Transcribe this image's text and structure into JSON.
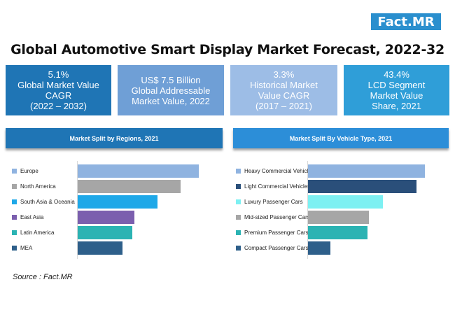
{
  "logo": "Fact.MR",
  "title": "Global Automotive Smart Display Market Forecast, 2022-32",
  "kpis": [
    {
      "lines": [
        "5.1%",
        "Global Market Value",
        "CAGR",
        "(2022 – 2032)"
      ],
      "color": "#1f75b5"
    },
    {
      "lines": [
        "US$ 7.5 Billion",
        "Global Addressable",
        "Market Value, 2022"
      ],
      "color": "#6f9fd6"
    },
    {
      "lines": [
        "3.3%",
        "Historical Market",
        "Value CAGR",
        "(2017 – 2021)"
      ],
      "color": "#9dbde6"
    },
    {
      "lines": [
        "43.4%",
        "LCD Segment",
        "Market Value",
        "Share, 2021"
      ],
      "color": "#2f9ed8"
    }
  ],
  "chart_data": [
    {
      "type": "bar",
      "orientation": "horizontal",
      "title": "Market Split by Regions, 2021",
      "categories": [
        "Europe",
        "North America",
        "South Asia & Oceania",
        "East Asia",
        "Latin America",
        "MEA"
      ],
      "values": [
        100,
        85,
        66,
        47,
        45,
        37
      ],
      "colors": [
        "#8fb3e0",
        "#a6a6a6",
        "#1ea8e8",
        "#7b5fae",
        "#2bb3b3",
        "#2e5f8a"
      ],
      "xlim": [
        0,
        100
      ],
      "header_color": "#1f75b5"
    },
    {
      "type": "bar",
      "orientation": "horizontal",
      "title": "Market Split By Vehicle Type, 2021",
      "categories": [
        "Heavy Commercial Vehicles",
        "Light Commercial Vehicles",
        "Luxury Passenger Cars",
        "Mid-sized Passenger Cars",
        "Premium Passenger Cars",
        "Compact Passenger Cars"
      ],
      "values": [
        100,
        93,
        64,
        52,
        51,
        19
      ],
      "colors": [
        "#8fb3e0",
        "#2a4f7a",
        "#7df0f2",
        "#a6a6a6",
        "#2bb3b3",
        "#2e5f8a"
      ],
      "xlim": [
        0,
        100
      ],
      "header_color": "#2c8ed8"
    }
  ],
  "source": "Source : Fact.MR"
}
